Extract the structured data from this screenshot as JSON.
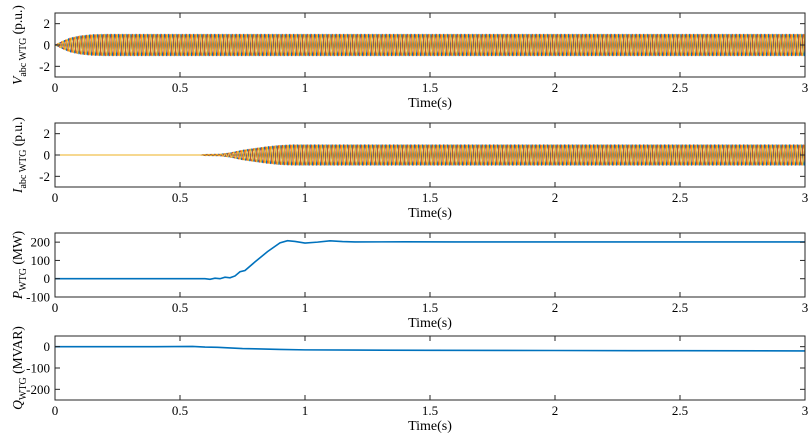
{
  "chart_data": [
    {
      "id": "vabc",
      "type": "line",
      "ylabel": {
        "main": "V",
        "sub": "abc WTG",
        "unit": " (p.u.)"
      },
      "xlabel": "Time(s)",
      "xlim": [
        0,
        3
      ],
      "ylim": [
        -3,
        3
      ],
      "xticks": [
        0,
        0.5,
        1,
        1.5,
        2,
        2.5,
        3
      ],
      "xtick_labels": [
        "0",
        "0.5",
        "1",
        "1.5",
        "2",
        "2.5",
        "3"
      ],
      "yticks": [
        2,
        0,
        -2
      ],
      "ytick_labels": [
        "2",
        "0",
        "-2"
      ],
      "colors": {
        "phase_a": "#0072BD",
        "phase_b": "#D95319",
        "phase_c": "#EDB120"
      },
      "series": [
        {
          "kind": "three-phase-envelope",
          "envelope": [
            [
              0,
              0
            ],
            [
              0.03,
              0.35
            ],
            [
              0.06,
              0.65
            ],
            [
              0.1,
              0.85
            ],
            [
              0.15,
              0.97
            ],
            [
              0.2,
              1.0
            ],
            [
              3,
              1.0
            ]
          ]
        }
      ]
    },
    {
      "id": "iabc",
      "type": "line",
      "ylabel": {
        "main": "I",
        "sub": "abc WTG",
        "unit": " (p.u.)"
      },
      "xlabel": "Time(s)",
      "xlim": [
        0,
        3
      ],
      "ylim": [
        -3,
        3
      ],
      "xticks": [
        0,
        0.5,
        1,
        1.5,
        2,
        2.5,
        3
      ],
      "xtick_labels": [
        "0",
        "0.5",
        "1",
        "1.5",
        "2",
        "2.5",
        "3"
      ],
      "yticks": [
        2,
        0,
        -2
      ],
      "ytick_labels": [
        "2",
        "0",
        "-2"
      ],
      "colors": {
        "phase_a": "#0072BD",
        "phase_b": "#D95319",
        "phase_c": "#EDB120"
      },
      "series": [
        {
          "kind": "three-phase-envelope",
          "envelope": [
            [
              0,
              0
            ],
            [
              0.58,
              0
            ],
            [
              0.6,
              0.06
            ],
            [
              0.66,
              0.08
            ],
            [
              0.7,
              0.2
            ],
            [
              0.75,
              0.45
            ],
            [
              0.8,
              0.62
            ],
            [
              0.85,
              0.78
            ],
            [
              0.9,
              0.9
            ],
            [
              0.95,
              0.95
            ],
            [
              1.0,
              0.95
            ],
            [
              3,
              0.95
            ]
          ]
        }
      ]
    },
    {
      "id": "pwtg",
      "type": "line",
      "ylabel": {
        "main": "P",
        "sub": "WTG",
        "unit": " (MW)"
      },
      "xlabel": "Time(s)",
      "xlim": [
        0,
        3
      ],
      "ylim": [
        -100,
        250
      ],
      "xticks": [
        0,
        0.5,
        1,
        1.5,
        2,
        2.5,
        3
      ],
      "xtick_labels": [
        "0",
        "0.5",
        "1",
        "1.5",
        "2",
        "2.5",
        "3"
      ],
      "yticks": [
        200,
        100,
        0,
        -100
      ],
      "ytick_labels": [
        "200",
        "100",
        "0",
        "-100"
      ],
      "colors": {
        "line": "#0072BD"
      },
      "series": [
        {
          "x": [
            0,
            0.3,
            0.5,
            0.6,
            0.62,
            0.64,
            0.66,
            0.68,
            0.7,
            0.72,
            0.74,
            0.76,
            0.8,
            0.85,
            0.9,
            0.93,
            0.96,
            1.0,
            1.05,
            1.1,
            1.15,
            1.2,
            1.4,
            1.6,
            2.0,
            2.5,
            3.0
          ],
          "y": [
            0,
            0,
            0,
            0,
            -3,
            3,
            0,
            8,
            5,
            15,
            38,
            45,
            92,
            148,
            196,
            208,
            204,
            195,
            200,
            207,
            203,
            201,
            202,
            201,
            201,
            201,
            201
          ]
        }
      ]
    },
    {
      "id": "qwtg",
      "type": "line",
      "ylabel": {
        "main": "Q",
        "sub": "WTG",
        "unit": " (MVAR)"
      },
      "xlabel": "Time(s)",
      "xlim": [
        0,
        3
      ],
      "ylim": [
        -250,
        50
      ],
      "xticks": [
        0,
        0.5,
        1,
        1.5,
        2,
        2.5,
        3
      ],
      "xtick_labels": [
        "0",
        "0.5",
        "1",
        "1.5",
        "2",
        "2.5",
        "3"
      ],
      "yticks": [
        0,
        -100,
        -200
      ],
      "ytick_labels": [
        "0",
        "-100",
        "-200"
      ],
      "colors": {
        "line": "#0072BD"
      },
      "series": [
        {
          "x": [
            0,
            0.4,
            0.55,
            0.6,
            0.65,
            0.7,
            0.75,
            0.8,
            0.9,
            1.0,
            1.2,
            1.5,
            2.0,
            2.5,
            3.0
          ],
          "y": [
            0,
            0,
            1,
            -2,
            -3,
            -6,
            -9,
            -10,
            -13,
            -15,
            -16,
            -17,
            -18,
            -19,
            -20
          ]
        }
      ]
    }
  ]
}
